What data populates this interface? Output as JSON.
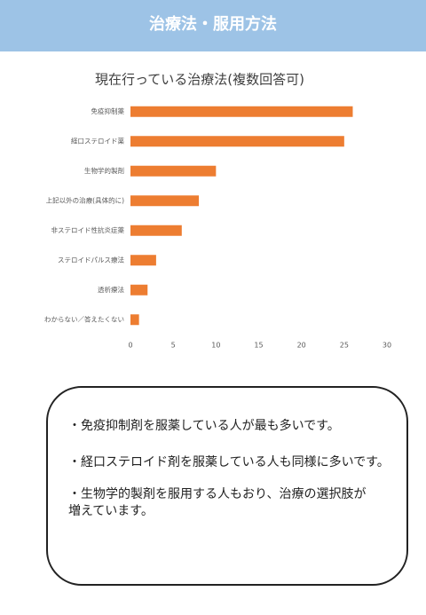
{
  "header": {
    "title": "治療法・服用方法"
  },
  "chart_data": {
    "type": "bar",
    "orientation": "horizontal",
    "title": "現在行っている治療法(複数回答可)",
    "categories": [
      "免疫抑制薬",
      "経口ステロイド薬",
      "生物学的製剤",
      "上記以外の治療(具体的に)",
      "非ステロイド性抗炎症薬",
      "ステロイドパルス療法",
      "透析療法",
      "わからない／答えたくない"
    ],
    "values": [
      26,
      25,
      10,
      8,
      6,
      3,
      2,
      1
    ],
    "color": "#ed7d31",
    "xlim": [
      0,
      30
    ],
    "xticks": [
      0,
      5,
      10,
      15,
      20,
      25,
      30
    ],
    "grid": false
  },
  "notes": [
    "・免疫抑制剤を服薬している人が最も多いです。",
    "・経口ステロイド剤を服薬している人も同様に多いです。",
    "・生物学的製剤を服用する人もおり、治療の選択肢が\n増えています。"
  ]
}
